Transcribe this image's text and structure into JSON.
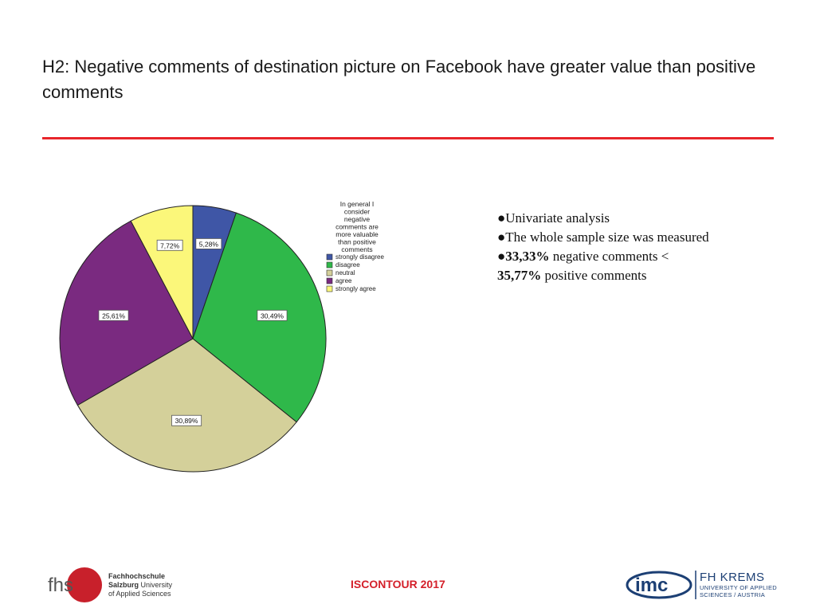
{
  "slide": {
    "title": "H2: Negative comments of destination picture on Facebook have greater value than positive comments",
    "bullets": [
      {
        "bold": "",
        "text": "Univariate analysis"
      },
      {
        "bold": "",
        "text": "The whole sample size was measured"
      },
      {
        "bold": "33,33%",
        "text": " negative comments < "
      },
      {
        "bold": "35,77%",
        "text": " positive comments"
      }
    ],
    "footer_center": "ISCONTOUR 2017",
    "left_logo": {
      "mark": "fhs",
      "line1": "Fachhochschule",
      "line2_bold": "Salzburg",
      "line2_rest": " University",
      "line3": "of Applied Sciences"
    },
    "right_logo": {
      "mark": "imc",
      "line1": "FH KREMS",
      "line2": "UNIVERSITY OF APPLIED",
      "line3": "SCIENCES / AUSTRIA"
    },
    "colors": {
      "rule": "#e8262b",
      "footer": "#d4202a",
      "krems": "#1c3f74"
    }
  },
  "chart_data": {
    "type": "pie",
    "legend_title": "In general I consider negative comments are more valuable than positive comments",
    "legend_position": "top-right",
    "start_angle_deg": 0,
    "direction": "clockwise",
    "slices": [
      {
        "label": "strongly disagree",
        "value": 5.28,
        "value_label": "5,28%",
        "color": "#3f56a6"
      },
      {
        "label": "disagree",
        "value": 30.49,
        "value_label": "30,49%",
        "color": "#2fb84a"
      },
      {
        "label": "neutral",
        "value": 30.89,
        "value_label": "30,89%",
        "color": "#d4d09a"
      },
      {
        "label": "agree",
        "value": 25.61,
        "value_label": "25,61%",
        "color": "#7a2a80"
      },
      {
        "label": "strongly agree",
        "value": 7.72,
        "value_label": "7,72%",
        "color": "#fbf77a"
      }
    ]
  }
}
